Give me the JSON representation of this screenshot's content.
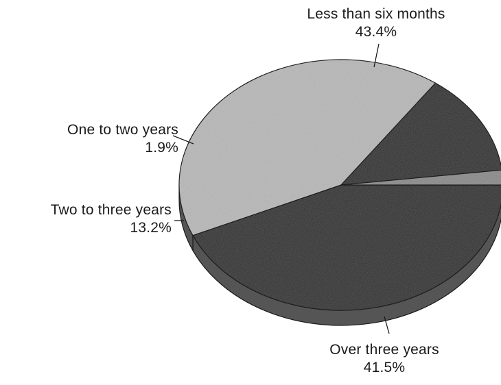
{
  "chart_data": {
    "type": "pie",
    "title": "",
    "slices": [
      {
        "label": "Less than six months",
        "value": 43.4,
        "value_label": "43.4%",
        "color": "#3c3c3c"
      },
      {
        "label": "Over three years",
        "value": 41.5,
        "value_label": "41.5%",
        "color": "#b4b4b4"
      },
      {
        "label": "Two to three years",
        "value": 13.2,
        "value_label": "13.2%",
        "color": "#3c3c3c"
      },
      {
        "label": "One to two years",
        "value": 1.9,
        "value_label": "1.9%",
        "color": "#8a8a8a"
      }
    ],
    "style": "3d",
    "start_angle_deg": 0,
    "direction": "clockwise",
    "side_color": "#555555",
    "outline_color": "#1a1a1a",
    "labels_outside": true
  }
}
